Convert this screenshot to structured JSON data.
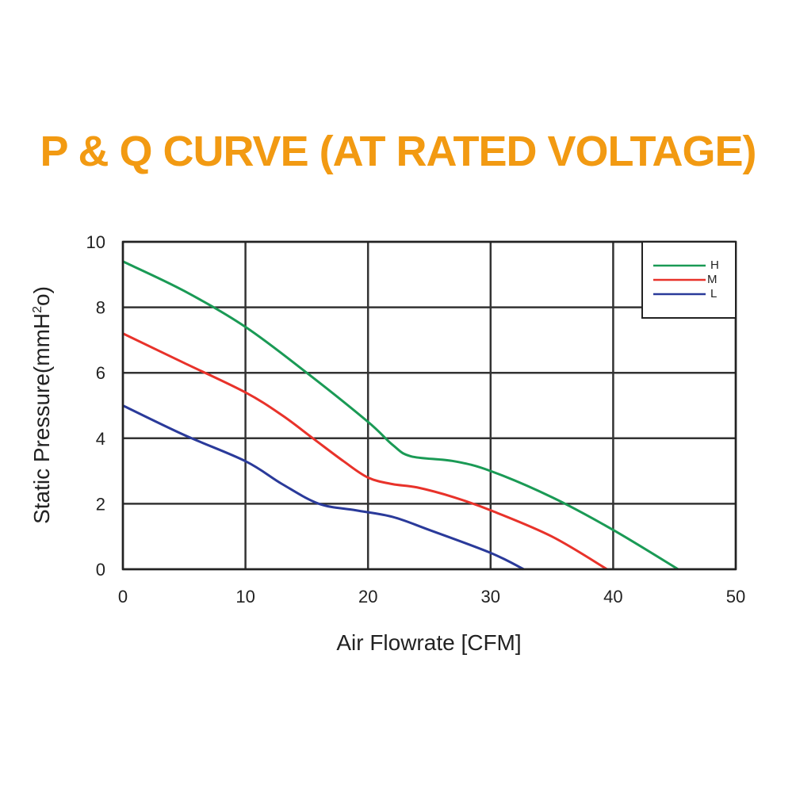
{
  "chart_data": {
    "type": "line",
    "title": "P & Q CURVE (AT RATED VOLTAGE)",
    "xlabel": "Air  Flowrate   [CFM]",
    "ylabel_main": "Static Pressure(mmH",
    "ylabel_sup": "2",
    "ylabel_end": "o)",
    "xlim": [
      0,
      50
    ],
    "ylim": [
      0,
      10
    ],
    "x_ticks": [
      "0",
      "10",
      "20",
      "30",
      "40",
      "50"
    ],
    "y_ticks": [
      "0",
      "2",
      "4",
      "6",
      "8",
      "10"
    ],
    "grid": true,
    "legend_position": "top-right",
    "series": [
      {
        "name": "H",
        "color": "#1a9a55",
        "points": [
          [
            0,
            9.4
          ],
          [
            5,
            8.5
          ],
          [
            10,
            7.4
          ],
          [
            15,
            6.0
          ],
          [
            20,
            4.5
          ],
          [
            22,
            3.8
          ],
          [
            23.5,
            3.45
          ],
          [
            27,
            3.3
          ],
          [
            30,
            3.0
          ],
          [
            35,
            2.2
          ],
          [
            40,
            1.2
          ],
          [
            45.3,
            0
          ]
        ]
      },
      {
        "name": "M",
        "color": "#e8322a",
        "points": [
          [
            0,
            7.2
          ],
          [
            5,
            6.3
          ],
          [
            10,
            5.4
          ],
          [
            13,
            4.7
          ],
          [
            15.5,
            4.0
          ],
          [
            18,
            3.3
          ],
          [
            20,
            2.8
          ],
          [
            22,
            2.6
          ],
          [
            24,
            2.5
          ],
          [
            27,
            2.2
          ],
          [
            30,
            1.8
          ],
          [
            35,
            1.0
          ],
          [
            39.5,
            0
          ]
        ]
      },
      {
        "name": "L",
        "color": "#2a3a9a",
        "points": [
          [
            0,
            5.0
          ],
          [
            5,
            4.1
          ],
          [
            10,
            3.3
          ],
          [
            13,
            2.6
          ],
          [
            16,
            2.0
          ],
          [
            19,
            1.8
          ],
          [
            22,
            1.6
          ],
          [
            25,
            1.2
          ],
          [
            30,
            0.5
          ],
          [
            32.7,
            0
          ]
        ]
      }
    ]
  }
}
